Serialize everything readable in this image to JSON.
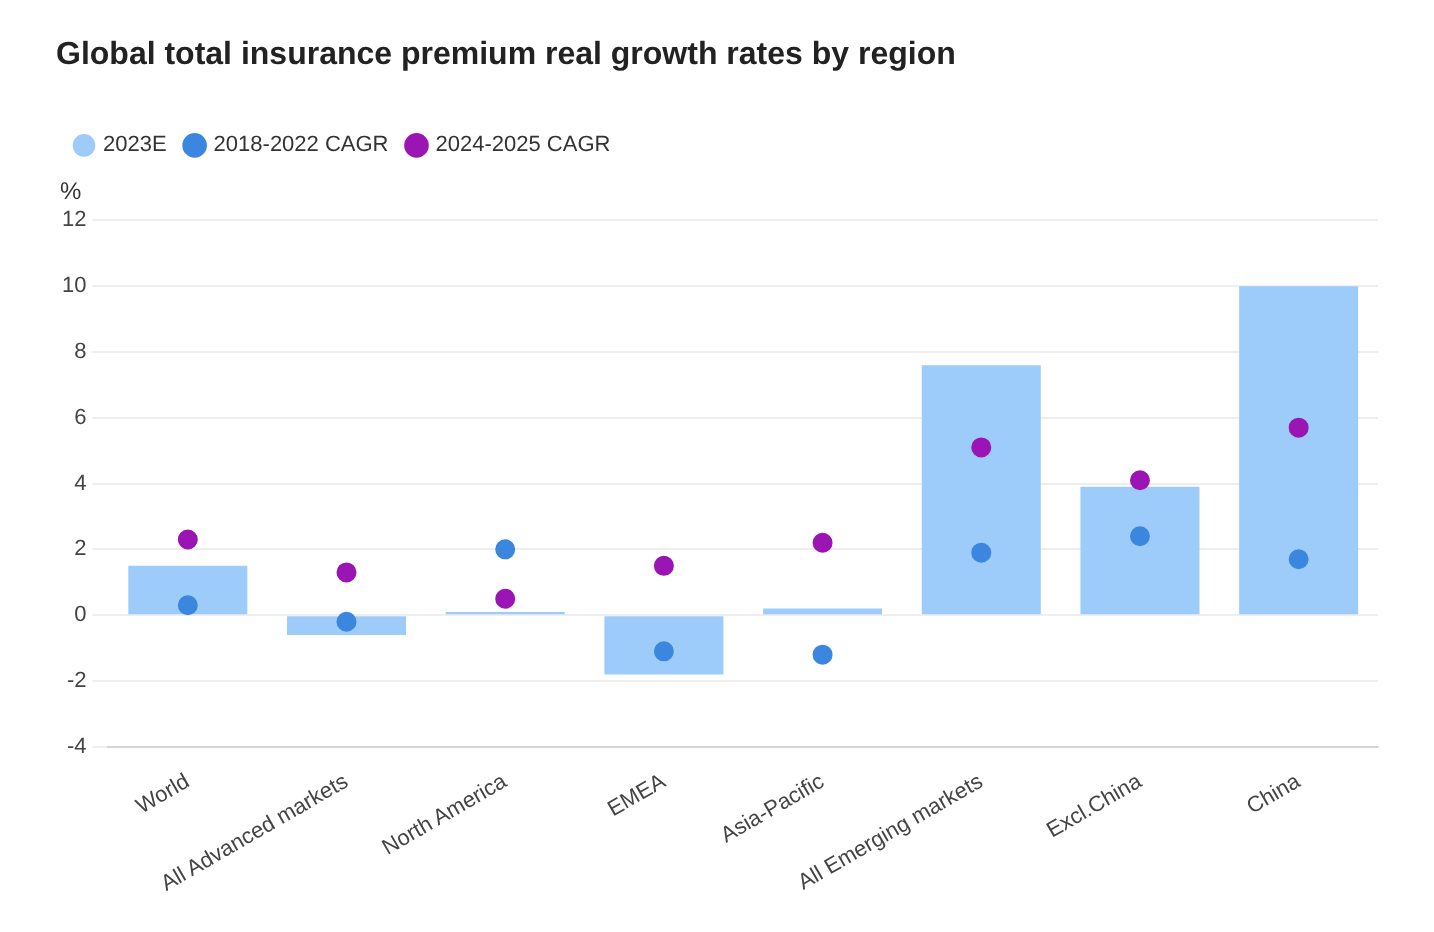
{
  "chart_data": {
    "type": "bar",
    "title": "Global total insurance premium real growth rates by region",
    "ylabel": "%",
    "categories": [
      "World",
      "All Advanced markets",
      "North America",
      "EMEA",
      "Asia-Pacific",
      "All Emerging markets",
      "Excl.China",
      "China"
    ],
    "series": [
      {
        "name": "2023E",
        "color": "#9dcbfa",
        "values": [
          1.5,
          -0.6,
          0.1,
          -1.8,
          0.2,
          7.6,
          3.9,
          10.0
        ]
      },
      {
        "name": "2018-2022 CAGR",
        "type": "scatter",
        "color": "#3b87e0",
        "values": [
          0.3,
          -0.2,
          2.0,
          -1.1,
          -1.2,
          1.9,
          2.4,
          1.7
        ]
      },
      {
        "name": "2024-2025 CAGR",
        "type": "scatter",
        "color": "#9b14b4",
        "values": [
          2.3,
          1.3,
          0.5,
          1.5,
          2.2,
          5.1,
          4.1,
          5.7
        ]
      }
    ],
    "ylim": [
      -4,
      12
    ],
    "yticks": [
      -4,
      -2,
      0,
      2,
      4,
      6,
      8,
      10,
      12
    ],
    "grid": "y",
    "legend": "top left",
    "marker": "circle"
  }
}
